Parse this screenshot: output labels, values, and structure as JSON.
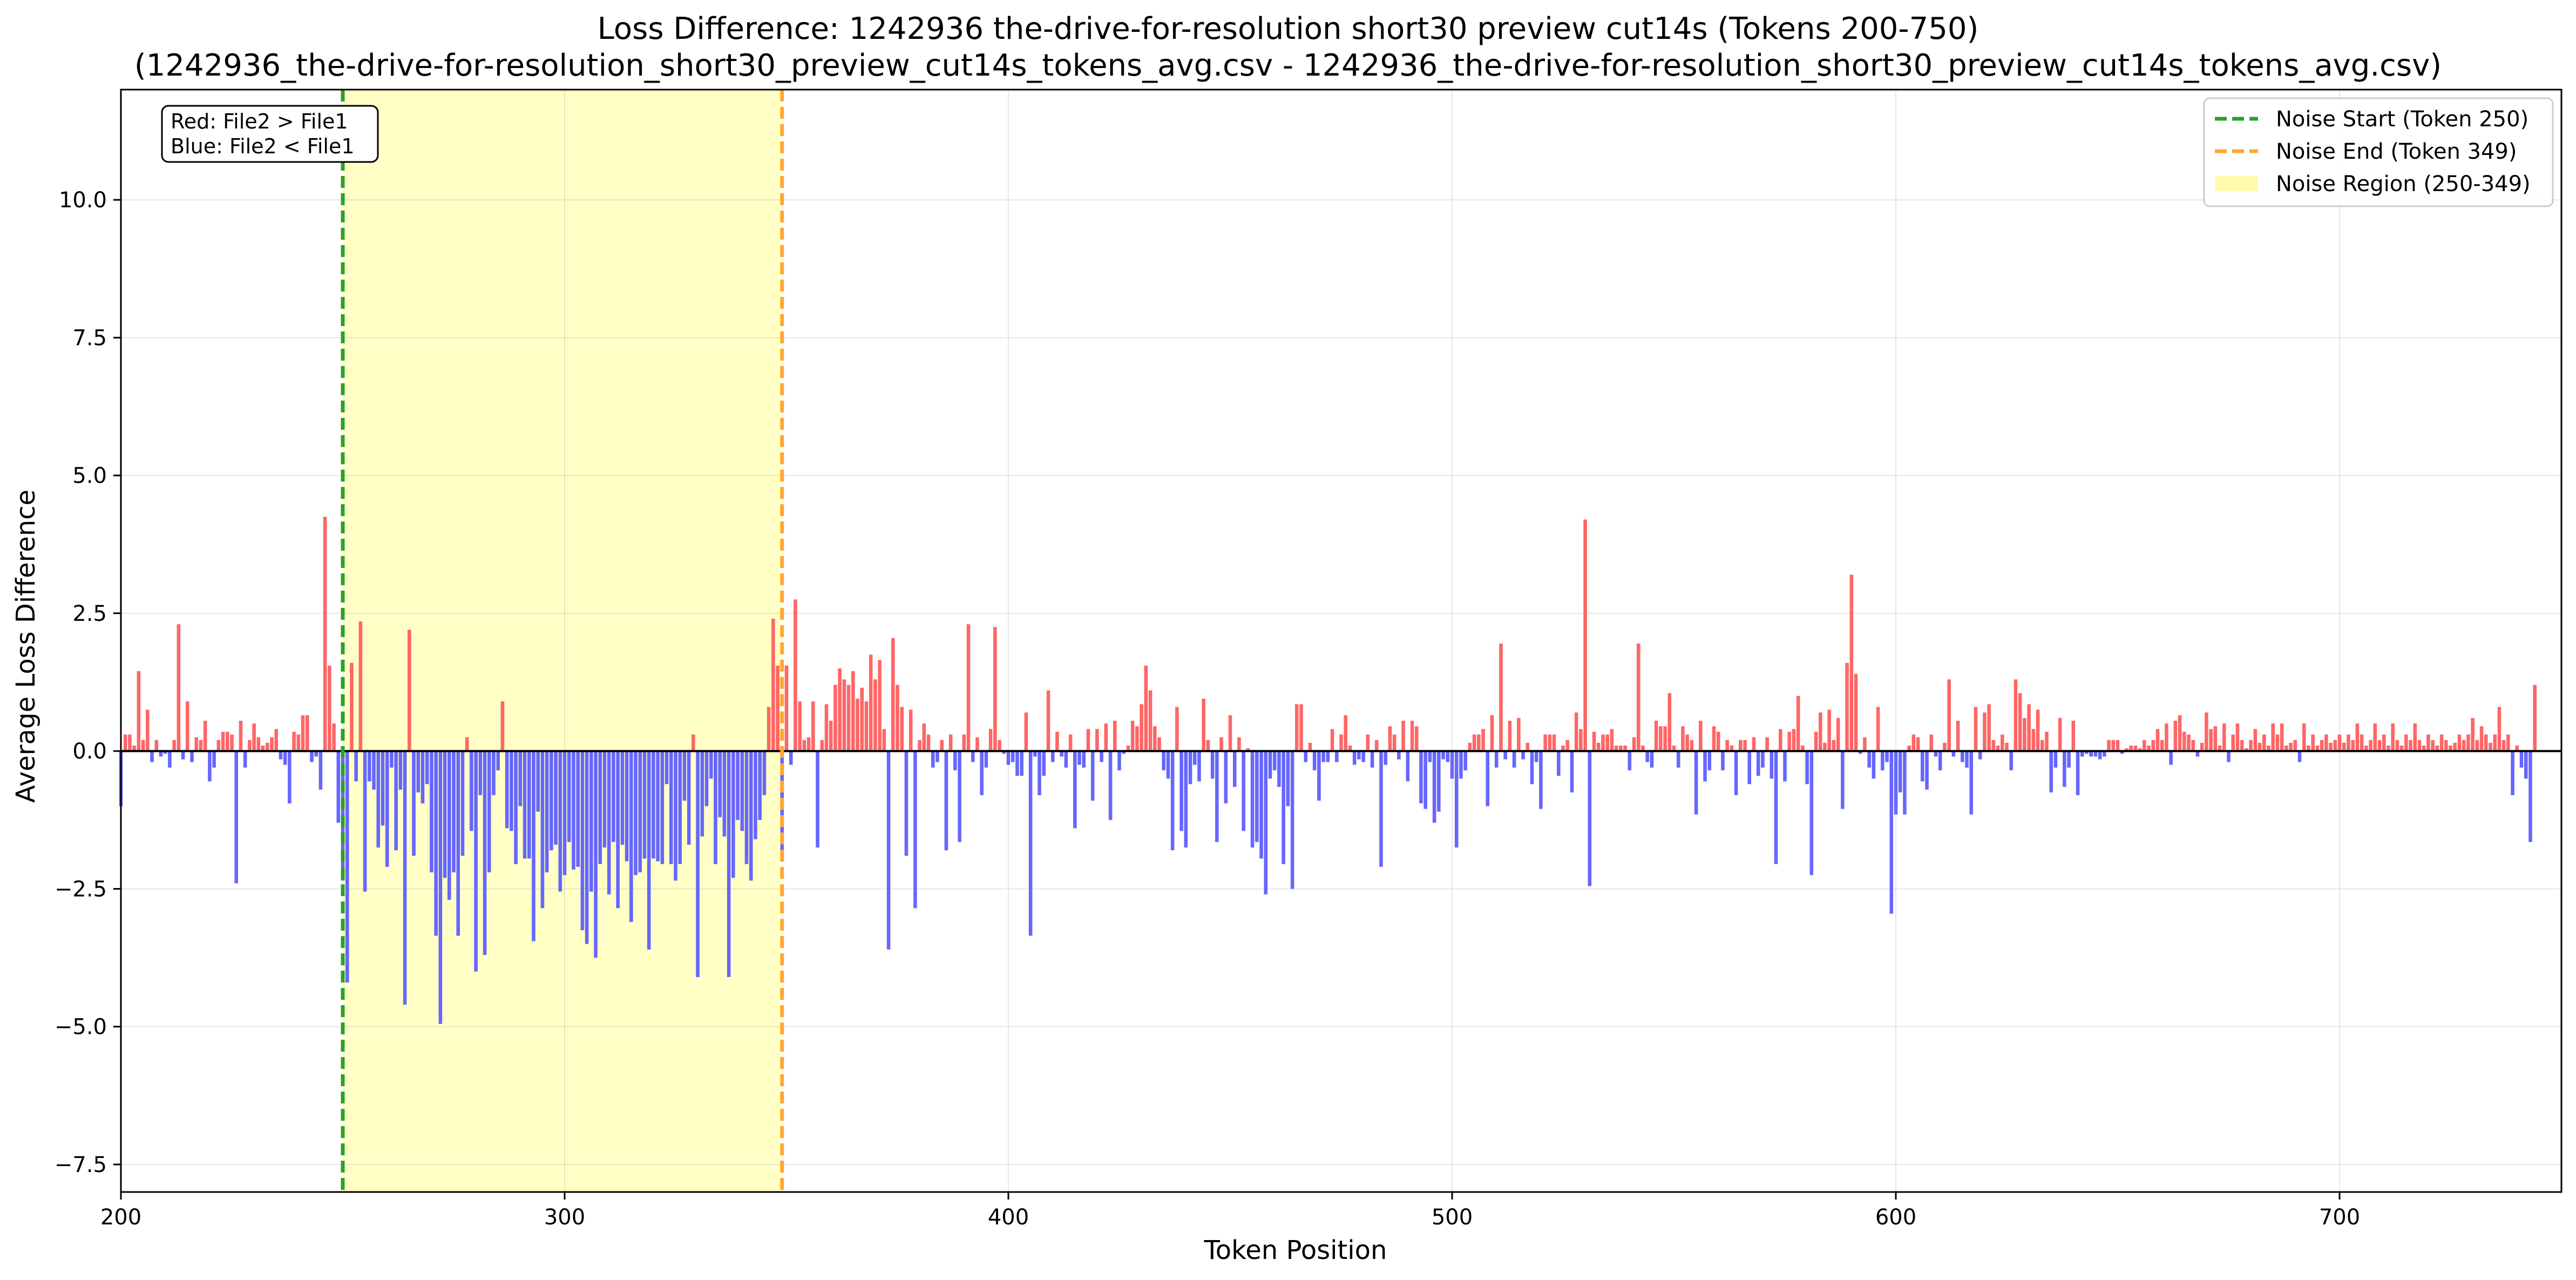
{
  "chart_data": {
    "type": "bar",
    "title_line1": "Loss Difference: 1242936 the-drive-for-resolution short30 preview cut14s (Tokens 200-750)",
    "title_line2": "(1242936_the-drive-for-resolution_short30_preview_cut14s_tokens_avg.csv - 1242936_the-drive-for-resolution_short30_preview_cut14s_tokens_avg.csv)",
    "xlabel": "Token Position",
    "ylabel": "Average Loss Difference",
    "xlim": [
      200,
      750
    ],
    "ylim": [
      -8.0,
      12.0
    ],
    "x_ticks": [
      200,
      300,
      400,
      500,
      600,
      700
    ],
    "x_tick_labels": [
      "200",
      "300",
      "400",
      "500",
      "600",
      "700"
    ],
    "y_ticks": [
      -7.5,
      -5.0,
      -2.5,
      0.0,
      2.5,
      5.0,
      7.5,
      10.0
    ],
    "y_tick_labels": [
      "−7.5",
      "−5.0",
      "−2.5",
      "0.0",
      "2.5",
      "5.0",
      "7.5",
      "10.0"
    ],
    "grid": true,
    "annotation": {
      "line1": "Red: File2 > File1",
      "line2": "Blue: File2 < File1"
    },
    "legend": {
      "placement": "top-right",
      "entries": [
        {
          "label": "Noise Start (Token 250)",
          "style": "dashed-line",
          "color": "#2ca02c"
        },
        {
          "label": "Noise End (Token 349)",
          "style": "dashed-line",
          "color": "#ffa733"
        },
        {
          "label": "Noise Region (250-349)",
          "style": "patch",
          "color": "#fffbaa"
        }
      ]
    },
    "noise_region": {
      "start": 250,
      "end": 349
    },
    "colors": {
      "positive": "#ff6666",
      "negative": "#6666ff",
      "noise_start": "#2ca02c",
      "noise_end": "#ffa733",
      "region": "#ffffa0"
    },
    "x_start": 200,
    "values": [
      -1.0,
      0.3,
      0.3,
      0.1,
      1.45,
      0.2,
      0.75,
      -0.2,
      0.2,
      -0.1,
      -0.05,
      -0.3,
      0.2,
      2.3,
      -0.15,
      0.9,
      -0.2,
      0.25,
      0.2,
      0.55,
      -0.55,
      -0.3,
      0.2,
      0.35,
      0.35,
      0.3,
      -2.4,
      0.55,
      -0.3,
      0.2,
      0.5,
      0.25,
      0.1,
      0.15,
      0.25,
      0.4,
      -0.15,
      -0.25,
      -0.95,
      0.35,
      0.3,
      0.65,
      0.65,
      -0.2,
      -0.1,
      -0.7,
      4.25,
      1.55,
      0.5,
      -1.3,
      -2.35,
      -4.2,
      1.6,
      -0.55,
      2.35,
      -2.55,
      -0.55,
      -0.7,
      -1.75,
      -1.35,
      -2.1,
      -0.3,
      -1.8,
      -0.7,
      -4.6,
      2.2,
      -1.9,
      -0.75,
      -0.95,
      -0.6,
      -2.2,
      -3.35,
      -4.95,
      -2.3,
      -2.7,
      -2.2,
      -3.35,
      -1.9,
      0.25,
      -1.45,
      -4.0,
      -0.8,
      -3.7,
      -2.2,
      -0.8,
      -0.35,
      0.9,
      -1.4,
      -1.45,
      -2.05,
      -1.0,
      -1.95,
      -1.95,
      -3.45,
      -1.1,
      -2.85,
      -2.2,
      -1.8,
      -1.7,
      -2.55,
      -2.25,
      -1.65,
      -2.15,
      -2.1,
      -3.25,
      -3.5,
      -2.55,
      -3.75,
      -2.05,
      -1.75,
      -2.6,
      -1.65,
      -2.85,
      -1.7,
      -2.0,
      -3.1,
      -2.25,
      -2.2,
      -1.95,
      -3.6,
      -1.95,
      -2.0,
      -2.05,
      -0.6,
      -2.05,
      -2.35,
      -2.05,
      -0.9,
      -1.7,
      0.3,
      -4.1,
      -1.55,
      -1.0,
      -0.5,
      -2.05,
      -1.2,
      -1.55,
      -4.1,
      -2.3,
      -1.25,
      -1.45,
      -2.05,
      -2.35,
      -1.6,
      -1.25,
      -0.8,
      0.8,
      2.4,
      1.55,
      -2.0,
      1.55,
      -0.25,
      2.75,
      0.9,
      0.2,
      0.25,
      0.9,
      -1.75,
      0.2,
      0.85,
      0.55,
      1.2,
      1.5,
      1.3,
      1.2,
      1.45,
      0.95,
      1.15,
      0.9,
      1.75,
      1.3,
      1.65,
      0.4,
      -3.6,
      2.05,
      1.2,
      0.8,
      -1.9,
      0.75,
      -2.85,
      0.2,
      0.5,
      0.3,
      -0.3,
      -0.2,
      0.2,
      -1.8,
      0.3,
      -0.35,
      -1.65,
      0.3,
      2.3,
      -0.2,
      0.25,
      -0.8,
      -0.3,
      0.4,
      2.25,
      0.2,
      -0.05,
      -0.25,
      -0.2,
      -0.45,
      -0.45,
      0.7,
      -3.35,
      -0.1,
      -0.8,
      -0.45,
      1.1,
      -0.2,
      0.35,
      -0.1,
      -0.3,
      0.3,
      -1.4,
      -0.25,
      -0.3,
      0.4,
      -0.9,
      0.4,
      -0.2,
      0.5,
      -1.25,
      0.55,
      -0.35,
      -0.05,
      0.1,
      0.55,
      0.45,
      0.85,
      1.55,
      1.1,
      0.45,
      0.25,
      -0.35,
      -0.5,
      -1.8,
      0.8,
      -1.45,
      -1.75,
      -0.6,
      -0.25,
      -0.55,
      0.95,
      0.2,
      -0.5,
      -1.65,
      0.25,
      -0.95,
      0.65,
      -0.65,
      0.25,
      -1.45,
      0.05,
      -1.75,
      -1.65,
      -1.95,
      -2.6,
      -0.5,
      -0.35,
      -0.65,
      -2.05,
      -1.0,
      -2.5,
      0.85,
      0.85,
      -0.2,
      0.15,
      -0.35,
      -0.9,
      -0.2,
      -0.2,
      0.4,
      -0.2,
      0.3,
      0.65,
      0.1,
      -0.25,
      -0.15,
      -0.2,
      0.3,
      -0.3,
      0.2,
      -2.1,
      -0.25,
      0.45,
      0.3,
      -0.15,
      0.55,
      -0.55,
      0.55,
      0.45,
      -0.95,
      -1.05,
      -0.2,
      -1.3,
      -1.1,
      -0.15,
      -0.2,
      -0.5,
      -1.75,
      -0.5,
      -0.35,
      0.15,
      0.3,
      0.3,
      0.4,
      -1.0,
      0.65,
      -0.3,
      1.95,
      -0.15,
      0.55,
      -0.3,
      0.6,
      -0.15,
      0.15,
      -0.6,
      -0.2,
      -1.05,
      0.3,
      0.3,
      0.3,
      -0.45,
      0.1,
      0.2,
      -0.75,
      0.7,
      0.4,
      4.2,
      -2.45,
      0.35,
      0.15,
      0.3,
      0.3,
      0.4,
      0.1,
      0.1,
      0.1,
      -0.35,
      0.25,
      1.95,
      0.1,
      -0.2,
      -0.3,
      0.55,
      0.45,
      0.45,
      1.05,
      0.1,
      -0.3,
      0.45,
      0.3,
      0.2,
      -1.15,
      0.55,
      -0.55,
      -0.35,
      0.45,
      0.35,
      -0.35,
      0.2,
      0.1,
      -0.8,
      0.2,
      0.2,
      -0.6,
      0.25,
      -0.45,
      -0.3,
      0.25,
      -0.5,
      -2.05,
      0.4,
      -0.55,
      0.35,
      0.4,
      1.0,
      0.1,
      -0.6,
      -2.25,
      0.35,
      0.7,
      0.15,
      0.75,
      0.2,
      0.6,
      -1.05,
      1.6,
      3.2,
      1.4,
      -0.05,
      0.25,
      -0.3,
      -0.5,
      0.8,
      -0.35,
      -0.2,
      -2.95,
      -1.15,
      -0.75,
      -1.15,
      0.1,
      0.3,
      0.25,
      -0.55,
      -0.7,
      0.3,
      -0.1,
      -0.35,
      0.15,
      1.3,
      -0.1,
      0.55,
      -0.2,
      -0.3,
      -1.15,
      0.8,
      -0.15,
      0.7,
      0.85,
      0.2,
      0.1,
      0.3,
      0.15,
      -0.35,
      1.3,
      1.05,
      0.6,
      0.85,
      0.4,
      0.75,
      0.2,
      0.35,
      -0.75,
      -0.3,
      0.6,
      -0.65,
      -0.3,
      0.55,
      -0.8,
      -0.1,
      -0.05,
      -0.1,
      -0.1,
      -0.15,
      -0.1,
      0.2,
      0.2,
      0.2,
      -0.05,
      0.05,
      0.1,
      0.1,
      0.05,
      0.2,
      0.1,
      0.2,
      0.4,
      0.2,
      0.5,
      -0.25,
      0.55,
      0.65,
      0.35,
      0.3,
      0.2,
      -0.1,
      0.15,
      0.7,
      0.4,
      0.45,
      0.1,
      0.5,
      -0.2,
      0.3,
      0.5,
      0.2,
      0.05,
      0.2,
      0.4,
      0.15,
      0.3,
      0.1,
      0.5,
      0.3,
      0.5,
      0.1,
      0.15,
      0.2,
      -0.2,
      0.5,
      0.1,
      0.3,
      0.1,
      0.2,
      0.3,
      0.15,
      0.2,
      0.3,
      0.15,
      0.3,
      0.2,
      0.5,
      0.3,
      0.1,
      0.2,
      0.5,
      0.2,
      0.3,
      0.1,
      0.5,
      0.2,
      0.1,
      0.3,
      0.2,
      0.5,
      0.2,
      0.1,
      0.3,
      0.2,
      0.1,
      0.3,
      0.2,
      0.1,
      0.15,
      0.3,
      0.2,
      0.3,
      0.6,
      0.2,
      0.45,
      0.3,
      0.15,
      0.3,
      0.8,
      0.2,
      0.3,
      -0.8,
      0.1,
      -0.3,
      -0.5,
      -1.65,
      1.2
    ]
  }
}
